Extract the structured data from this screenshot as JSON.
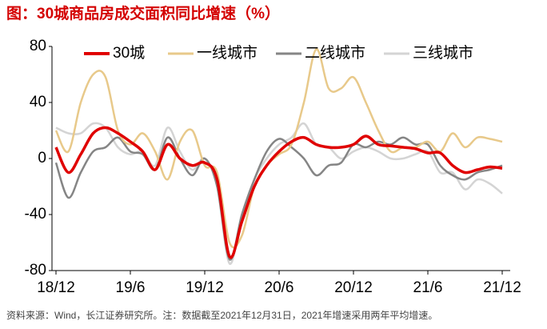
{
  "chart_data": {
    "type": "line",
    "title": "图：30城商品房成交面积同比增速（%）",
    "source": "资料来源：Wind，长江证券研究所。注：数据截至2021年12月31日，2021年增速采用两年平均增速。",
    "categories": [
      "18/12",
      null,
      null,
      null,
      null,
      null,
      "19/6",
      null,
      null,
      null,
      null,
      null,
      "19/12",
      null,
      null,
      null,
      null,
      null,
      "20/6",
      null,
      null,
      null,
      null,
      null,
      "20/12",
      null,
      null,
      null,
      null,
      null,
      "21/6",
      null,
      null,
      null,
      null,
      null,
      "21/12"
    ],
    "ylim": [
      -80,
      80
    ],
    "yticks": [
      -80,
      -40,
      0,
      40,
      80
    ],
    "legend": "top",
    "series": [
      {
        "name": "30城",
        "color": "#e00000",
        "width": 3.5,
        "values": [
          8,
          -10,
          3,
          18,
          22,
          18,
          12,
          5,
          -8,
          10,
          0,
          -5,
          -3,
          -15,
          -70,
          -45,
          -20,
          -5,
          5,
          12,
          15,
          10,
          8,
          8,
          10,
          16,
          10,
          9,
          8,
          7,
          4,
          4,
          -5,
          -10,
          -8,
          -6,
          -7
        ]
      },
      {
        "name": "一线城市",
        "color": "#e8c98a",
        "width": 2.5,
        "values": [
          20,
          5,
          40,
          60,
          58,
          20,
          10,
          18,
          5,
          -15,
          12,
          20,
          -5,
          -10,
          -60,
          -55,
          -20,
          -5,
          3,
          10,
          40,
          78,
          50,
          50,
          58,
          40,
          20,
          5,
          8,
          8,
          12,
          5,
          18,
          8,
          15,
          14,
          12
        ]
      },
      {
        "name": "二线城市",
        "color": "#858585",
        "width": 2.5,
        "values": [
          -3,
          -28,
          -10,
          5,
          8,
          15,
          5,
          3,
          -8,
          15,
          0,
          -12,
          0,
          -20,
          -72,
          -40,
          -15,
          5,
          14,
          8,
          0,
          -12,
          -5,
          -3,
          10,
          8,
          12,
          10,
          15,
          10,
          10,
          -5,
          -12,
          -15,
          -10,
          -8,
          -5
        ]
      },
      {
        "name": "三线城市",
        "color": "#d4d4d4",
        "width": 2.5,
        "values": [
          22,
          18,
          18,
          25,
          22,
          8,
          3,
          5,
          -5,
          22,
          5,
          -8,
          0,
          -20,
          -75,
          -40,
          -15,
          0,
          10,
          15,
          25,
          10,
          8,
          0,
          5,
          8,
          5,
          0,
          0,
          3,
          5,
          -10,
          -10,
          -22,
          -15,
          -18,
          -25
        ]
      }
    ]
  }
}
